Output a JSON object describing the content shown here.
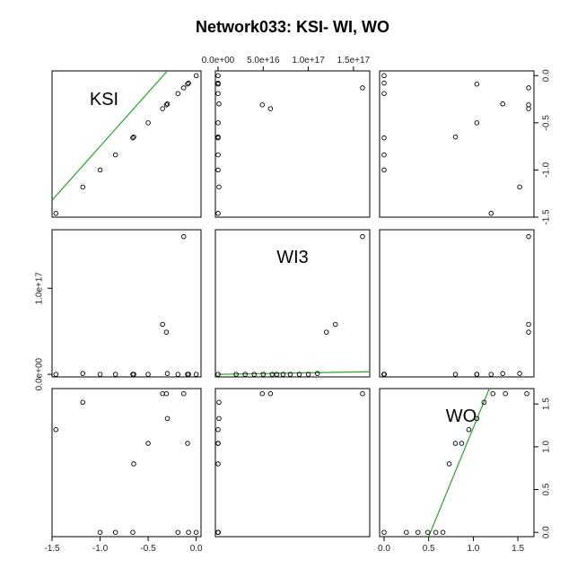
{
  "chart_data": {
    "type": "scatter",
    "title": "Network033: KSI- WI, WO",
    "variables": [
      "KSI",
      "WI3",
      "WO"
    ],
    "panel_labels": [
      "KSI",
      "WI3",
      "WO"
    ],
    "ranges": {
      "KSI": [
        -1.5,
        0.05
      ],
      "WI3": [
        -3000000000000000.0,
        1.68e+17
      ],
      "WO": [
        -0.05,
        1.68
      ]
    },
    "ticks": {
      "KSI": [
        {
          "value": -1.5,
          "label": "-1.5"
        },
        {
          "value": -1.0,
          "label": "-1.0"
        },
        {
          "value": -0.5,
          "label": "-0.5"
        },
        {
          "value": 0.0,
          "label": "0.0"
        }
      ],
      "WI3": [
        {
          "value": 0,
          "label": "0.0e+00"
        },
        {
          "value": 5e+16,
          "label": "5.0e+16"
        },
        {
          "value": 1e+17,
          "label": "1.0e+17"
        },
        {
          "value": 1.5e+17,
          "label": "1.5e+17"
        }
      ],
      "WO": [
        {
          "value": 0.0,
          "label": "0.0"
        },
        {
          "value": 0.5,
          "label": "0.5"
        },
        {
          "value": 1.0,
          "label": "1.0"
        },
        {
          "value": 1.5,
          "label": "1.5"
        }
      ]
    },
    "ticks_left_WI3": [
      {
        "value": 0,
        "label": "0.0e+00"
      },
      {
        "value": 1e+17,
        "label": "1.0e+17"
      }
    ],
    "points": [
      {
        "KSI": -1.46,
        "WI3": 0,
        "WO": 1.2
      },
      {
        "KSI": -1.18,
        "WI3": 1000000000000000.0,
        "WO": 1.52
      },
      {
        "KSI": -1.0,
        "WI3": 0,
        "WO": 0.0
      },
      {
        "KSI": -0.84,
        "WI3": 0,
        "WO": 0.0
      },
      {
        "KSI": -0.66,
        "WI3": 0,
        "WO": 0.0
      },
      {
        "KSI": -0.65,
        "WI3": 0,
        "WO": 0.8
      },
      {
        "KSI": -0.5,
        "WI3": 0,
        "WO": 1.04
      },
      {
        "KSI": -0.35,
        "WI3": 5.8e+16,
        "WO": 1.62
      },
      {
        "KSI": -0.31,
        "WI3": 4.9e+16,
        "WO": 1.62
      },
      {
        "KSI": -0.3,
        "WI3": 1000000000000000.0,
        "WO": 1.33
      },
      {
        "KSI": -0.19,
        "WI3": 0,
        "WO": 0.0
      },
      {
        "KSI": -0.13,
        "WI3": 1.6e+17,
        "WO": 1.62
      },
      {
        "KSI": -0.09,
        "WI3": 0,
        "WO": 1.04
      },
      {
        "KSI": -0.08,
        "WI3": 0,
        "WO": 0.0
      },
      {
        "KSI": 0.0,
        "WI3": 0,
        "WO": 0.0
      }
    ],
    "qq": {
      "KSI": [
        {
          "x": -1.46,
          "y": -1.46
        },
        {
          "x": -1.18,
          "y": -1.18
        },
        {
          "x": -1.0,
          "y": -1.0
        },
        {
          "x": -0.84,
          "y": -0.84
        },
        {
          "x": -0.66,
          "y": -0.66
        },
        {
          "x": -0.65,
          "y": -0.65
        },
        {
          "x": -0.5,
          "y": -0.5
        },
        {
          "x": -0.35,
          "y": -0.35
        },
        {
          "x": -0.31,
          "y": -0.31
        },
        {
          "x": -0.3,
          "y": -0.3
        },
        {
          "x": -0.19,
          "y": -0.19
        },
        {
          "x": -0.13,
          "y": -0.13
        },
        {
          "x": -0.09,
          "y": -0.09
        },
        {
          "x": -0.08,
          "y": -0.08
        },
        {
          "x": 0.0,
          "y": 0.0
        }
      ],
      "WI3": [
        {
          "x": 0,
          "y": 0
        },
        {
          "x": 2e+16,
          "y": 0
        },
        {
          "x": 3e+16,
          "y": 0
        },
        {
          "x": 4e+16,
          "y": 0
        },
        {
          "x": 5e+16,
          "y": 0
        },
        {
          "x": 6e+16,
          "y": 0
        },
        {
          "x": 6.5e+16,
          "y": 0
        },
        {
          "x": 7.2e+16,
          "y": 0
        },
        {
          "x": 8e+16,
          "y": 0
        },
        {
          "x": 9e+16,
          "y": 0
        },
        {
          "x": 1e+17,
          "y": 0
        },
        {
          "x": 1.1e+17,
          "y": 1000000000000000.0
        },
        {
          "x": 1.2e+17,
          "y": 4.9e+16
        },
        {
          "x": 1.3e+17,
          "y": 5.8e+16
        },
        {
          "x": 1.6e+17,
          "y": 1.6e+17
        }
      ],
      "WO": [
        {
          "x": 0.0,
          "y": 0.0
        },
        {
          "x": 0.25,
          "y": 0.0
        },
        {
          "x": 0.38,
          "y": 0.0
        },
        {
          "x": 0.49,
          "y": 0.0
        },
        {
          "x": 0.58,
          "y": 0.0
        },
        {
          "x": 0.66,
          "y": 0.0
        },
        {
          "x": 0.73,
          "y": 0.8
        },
        {
          "x": 0.8,
          "y": 1.04
        },
        {
          "x": 0.87,
          "y": 1.04
        },
        {
          "x": 0.95,
          "y": 1.2
        },
        {
          "x": 1.04,
          "y": 1.33
        },
        {
          "x": 1.12,
          "y": 1.52
        },
        {
          "x": 1.22,
          "y": 1.62
        },
        {
          "x": 1.36,
          "y": 1.62
        },
        {
          "x": 1.6,
          "y": 1.62
        }
      ]
    },
    "fit_lines": {
      "KSI": {
        "x": [
          -1.5,
          -0.3
        ],
        "y": [
          -1.32,
          0.05
        ]
      },
      "WI3": {
        "x": [
          0,
          1.68e+17
        ],
        "y": [
          0,
          3000000000000000.0
        ]
      },
      "WO": {
        "x": [
          0.5,
          1.18
        ],
        "y": [
          -0.05,
          1.68
        ]
      }
    },
    "grid": false,
    "colors": {
      "points": "#000000",
      "fit_line": "#2ca02c",
      "frame": "#000000"
    }
  }
}
